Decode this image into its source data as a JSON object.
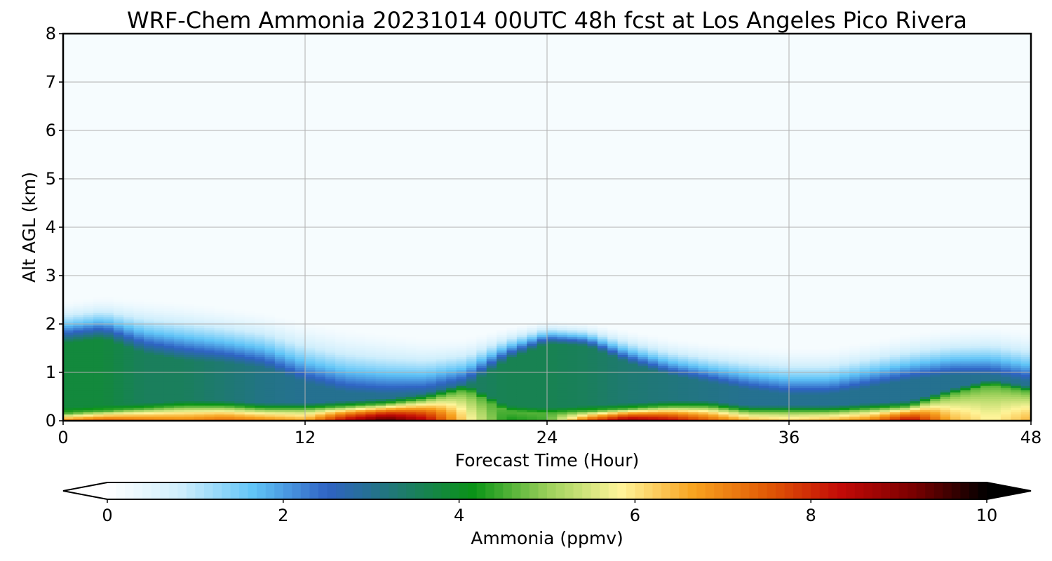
{
  "chart_data": {
    "type": "heatmap",
    "title": "WRF-Chem Ammonia  20231014 00UTC 48h fcst at Los Angeles Pico Rivera",
    "xlabel": "Forecast Time (Hour)",
    "ylabel": "Alt AGL (km)",
    "xlim": [
      0,
      48
    ],
    "ylim": [
      0,
      8
    ],
    "x_ticks": [
      "0",
      "12",
      "24",
      "36",
      "48"
    ],
    "y_ticks": [
      "0",
      "1",
      "2",
      "3",
      "4",
      "5",
      "6",
      "7",
      "8"
    ],
    "grid": true,
    "colorbar": {
      "label": "Ammonia  (ppmv)",
      "ticks": [
        "0",
        "2",
        "4",
        "6",
        "8",
        "10"
      ],
      "range": [
        0,
        10
      ],
      "extend": "both",
      "colors": [
        "#ffffff",
        "#cfeefc",
        "#60c4f7",
        "#2f63c4",
        "#1e7a6e",
        "#0a9416",
        "#9bd05a",
        "#fff59a",
        "#f8a31f",
        "#e15a05",
        "#c30a07",
        "#7a0000",
        "#000000"
      ]
    },
    "profiles": {
      "x": [
        0,
        2,
        4,
        6,
        8,
        10,
        12,
        14,
        16,
        18,
        20,
        22,
        24,
        26,
        28,
        30,
        32,
        34,
        36,
        38,
        40,
        42,
        44,
        46,
        48
      ],
      "surface_value": [
        7,
        7.5,
        7.2,
        7,
        7.3,
        7,
        6.6,
        8.5,
        9.6,
        8.5,
        6,
        4.2,
        4.5,
        7.5,
        9,
        8.5,
        7.5,
        6.5,
        6.2,
        6.5,
        7,
        8.5,
        6.5,
        5.8,
        6.5
      ],
      "surface_depth_km": [
        0.15,
        0.2,
        0.25,
        0.3,
        0.3,
        0.25,
        0.25,
        0.3,
        0.35,
        0.45,
        0.65,
        0.2,
        0.15,
        0.2,
        0.25,
        0.3,
        0.3,
        0.2,
        0.2,
        0.2,
        0.25,
        0.3,
        0.55,
        0.75,
        0.6
      ],
      "mid_value": [
        3.8,
        3.8,
        3.5,
        3.5,
        3.3,
        3.1,
        3,
        3,
        3,
        3.1,
        3.4,
        3.6,
        3.6,
        3.5,
        3.3,
        3.2,
        3.1,
        3,
        3,
        3,
        3,
        3,
        3,
        3,
        3
      ],
      "mid_top_km": [
        1.6,
        1.7,
        1.4,
        1.25,
        1.2,
        1.1,
        0.8,
        0.6,
        0.55,
        0.55,
        0.7,
        1.25,
        1.6,
        1.55,
        1.2,
        0.95,
        0.8,
        0.65,
        0.55,
        0.55,
        0.7,
        0.85,
        0.95,
        0.95,
        0.8
      ],
      "plume_top_km": [
        2.5,
        2.6,
        2.55,
        2.5,
        2.4,
        2.3,
        2.1,
        1.95,
        1.85,
        1.75,
        1.75,
        1.95,
        2.1,
        2.05,
        1.9,
        1.75,
        1.65,
        1.6,
        1.55,
        1.55,
        1.7,
        1.85,
        1.95,
        2,
        1.9
      ],
      "background_value": 0.15
    }
  }
}
